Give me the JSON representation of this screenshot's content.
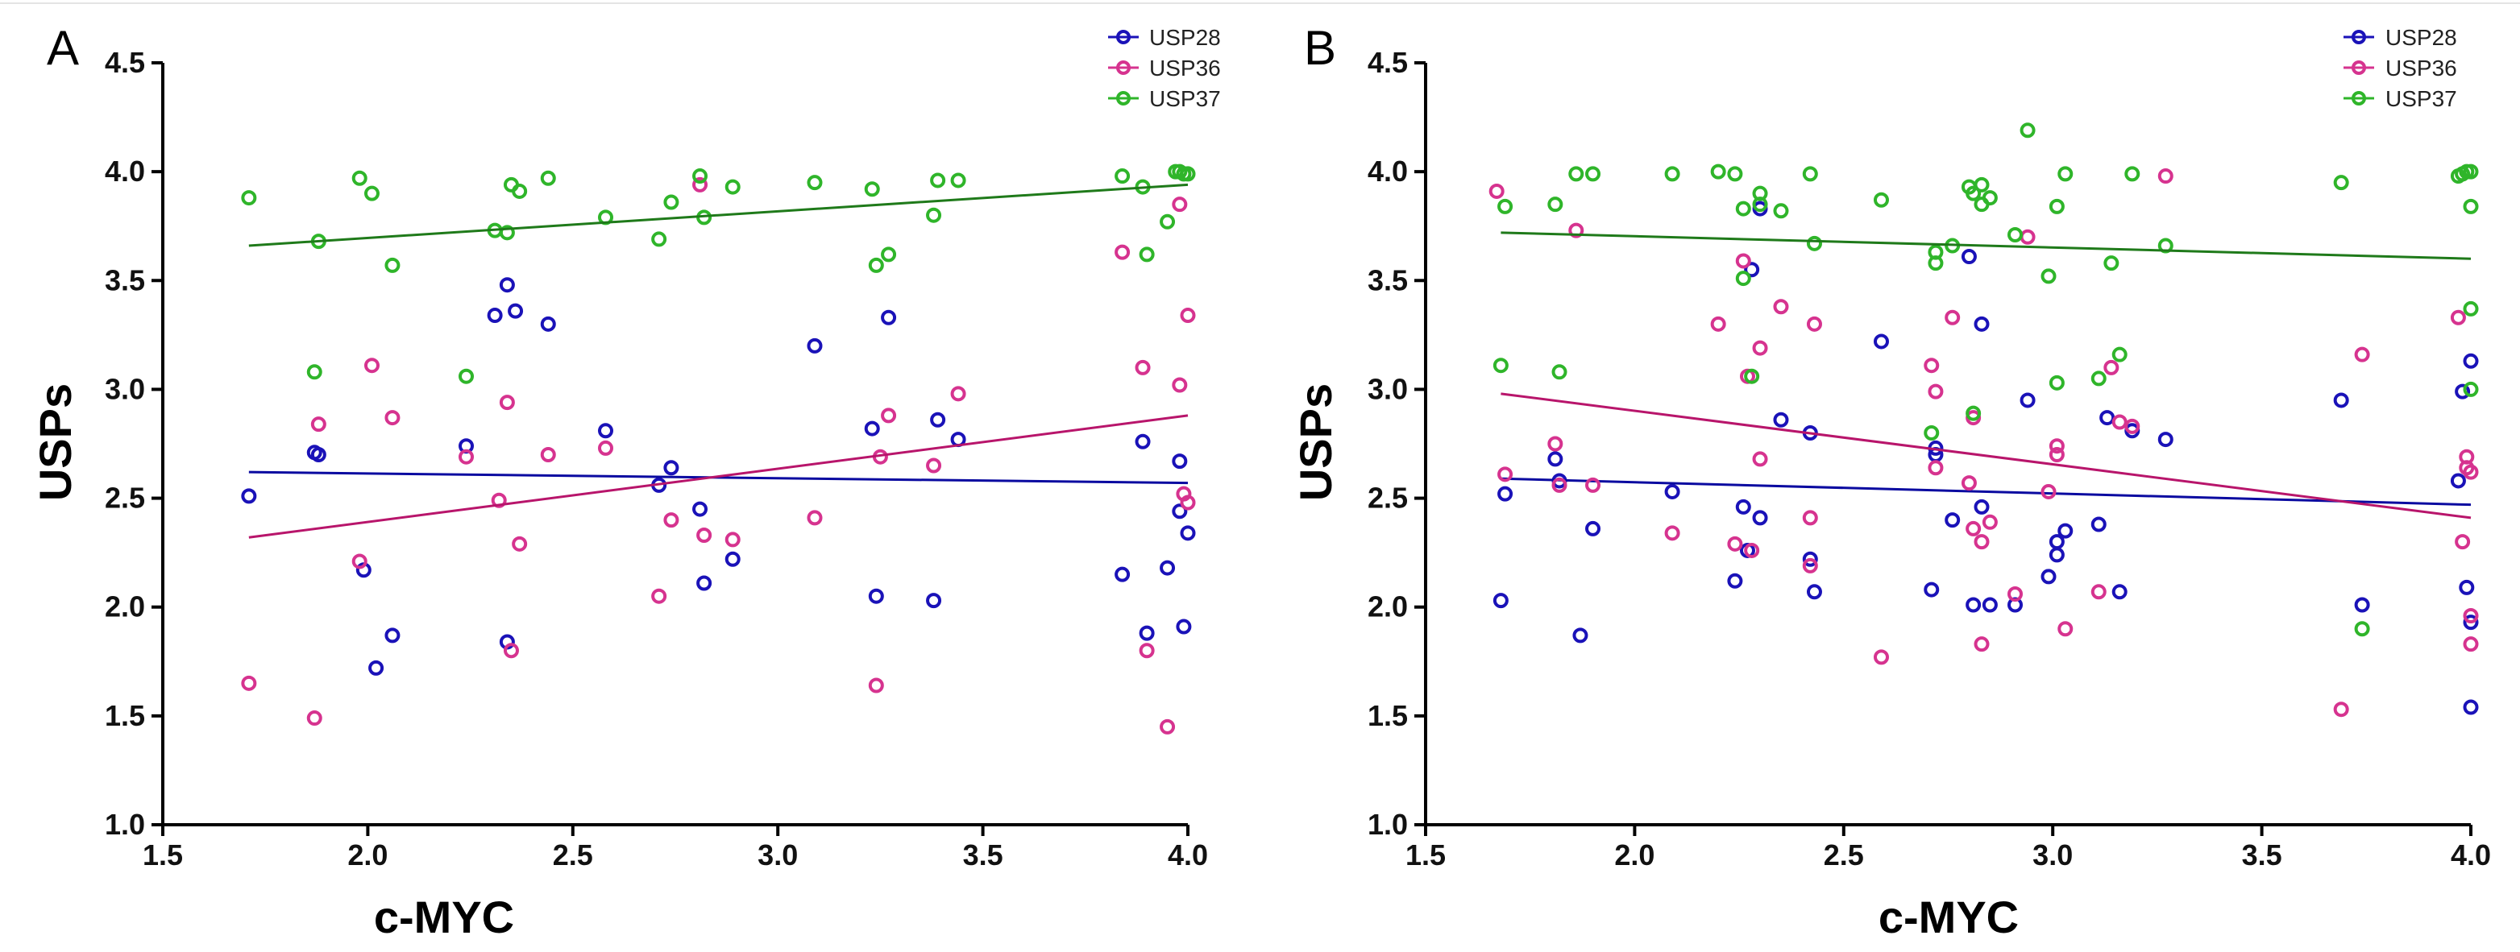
{
  "colors": {
    "USP28": "#1a12b8",
    "USP36": "#d6338f",
    "USP37": "#2fb52a",
    "USP28_line": "#0a0aa0",
    "USP36_line": "#b8156b",
    "USP37_line": "#1f7a1a"
  },
  "chart_data": [
    {
      "panel": "A",
      "type": "scatter",
      "xlabel": "c-MYC",
      "ylabel": "USPs",
      "xlim": [
        1.5,
        4.0
      ],
      "ylim": [
        1.0,
        4.5
      ],
      "xticks": [
        "1.5",
        "2.0",
        "2.5",
        "3.0",
        "3.5",
        "4.0"
      ],
      "yticks": [
        "1.0",
        "1.5",
        "2.0",
        "2.5",
        "3.0",
        "3.5",
        "4.0",
        "4.5"
      ],
      "legend_position": "top-right",
      "series": [
        {
          "name": "USP28",
          "trend": [
            [
              1.71,
              2.62
            ],
            [
              4.0,
              2.57
            ]
          ],
          "points": [
            [
              1.71,
              2.51
            ],
            [
              1.87,
              2.71
            ],
            [
              1.88,
              2.7
            ],
            [
              1.99,
              2.17
            ],
            [
              2.02,
              1.72
            ],
            [
              2.06,
              1.87
            ],
            [
              2.24,
              2.74
            ],
            [
              2.31,
              3.34
            ],
            [
              2.34,
              3.48
            ],
            [
              2.34,
              1.84
            ],
            [
              2.36,
              3.36
            ],
            [
              2.44,
              3.3
            ],
            [
              2.58,
              2.81
            ],
            [
              2.71,
              2.56
            ],
            [
              2.74,
              2.64
            ],
            [
              2.81,
              2.45
            ],
            [
              2.82,
              2.11
            ],
            [
              2.89,
              2.22
            ],
            [
              3.09,
              3.2
            ],
            [
              3.23,
              2.82
            ],
            [
              3.24,
              2.05
            ],
            [
              3.27,
              3.33
            ],
            [
              3.39,
              2.86
            ],
            [
              3.44,
              2.77
            ],
            [
              3.38,
              2.03
            ],
            [
              3.84,
              2.15
            ],
            [
              3.89,
              2.76
            ],
            [
              3.9,
              1.88
            ],
            [
              3.95,
              2.18
            ],
            [
              3.98,
              2.67
            ],
            [
              3.98,
              2.44
            ],
            [
              3.99,
              1.91
            ],
            [
              4.0,
              2.34
            ]
          ]
        },
        {
          "name": "USP36",
          "trend": [
            [
              1.71,
              2.32
            ],
            [
              4.0,
              2.88
            ]
          ],
          "points": [
            [
              1.71,
              1.65
            ],
            [
              1.87,
              1.49
            ],
            [
              1.88,
              2.84
            ],
            [
              1.98,
              2.21
            ],
            [
              2.01,
              3.11
            ],
            [
              2.06,
              2.87
            ],
            [
              2.24,
              2.69
            ],
            [
              2.32,
              2.49
            ],
            [
              2.34,
              2.94
            ],
            [
              2.35,
              1.8
            ],
            [
              2.37,
              2.29
            ],
            [
              2.44,
              2.7
            ],
            [
              2.58,
              2.73
            ],
            [
              2.71,
              2.05
            ],
            [
              2.74,
              2.4
            ],
            [
              2.81,
              3.94
            ],
            [
              2.82,
              2.33
            ],
            [
              2.89,
              2.31
            ],
            [
              3.09,
              2.41
            ],
            [
              3.24,
              1.64
            ],
            [
              3.25,
              2.69
            ],
            [
              3.27,
              2.88
            ],
            [
              3.38,
              2.65
            ],
            [
              3.44,
              2.98
            ],
            [
              3.84,
              3.63
            ],
            [
              3.89,
              3.1
            ],
            [
              3.9,
              1.8
            ],
            [
              3.95,
              1.45
            ],
            [
              3.98,
              3.02
            ],
            [
              3.98,
              3.85
            ],
            [
              3.99,
              2.52
            ],
            [
              4.0,
              3.34
            ],
            [
              4.0,
              2.48
            ]
          ]
        },
        {
          "name": "USP37",
          "trend": [
            [
              1.71,
              3.66
            ],
            [
              4.0,
              3.94
            ]
          ],
          "points": [
            [
              1.71,
              3.88
            ],
            [
              1.87,
              3.08
            ],
            [
              1.88,
              3.68
            ],
            [
              1.98,
              3.97
            ],
            [
              2.01,
              3.9
            ],
            [
              2.06,
              3.57
            ],
            [
              2.24,
              3.06
            ],
            [
              2.31,
              3.73
            ],
            [
              2.34,
              3.72
            ],
            [
              2.35,
              3.94
            ],
            [
              2.37,
              3.91
            ],
            [
              2.44,
              3.97
            ],
            [
              2.58,
              3.79
            ],
            [
              2.71,
              3.69
            ],
            [
              2.74,
              3.86
            ],
            [
              2.81,
              3.98
            ],
            [
              2.82,
              3.79
            ],
            [
              2.89,
              3.93
            ],
            [
              3.09,
              3.95
            ],
            [
              3.23,
              3.92
            ],
            [
              3.24,
              3.57
            ],
            [
              3.27,
              3.62
            ],
            [
              3.38,
              3.8
            ],
            [
              3.39,
              3.96
            ],
            [
              3.44,
              3.96
            ],
            [
              3.84,
              3.98
            ],
            [
              3.89,
              3.93
            ],
            [
              3.9,
              3.62
            ],
            [
              3.95,
              3.77
            ],
            [
              3.97,
              4.0
            ],
            [
              3.98,
              4.0
            ],
            [
              3.99,
              3.99
            ],
            [
              4.0,
              3.99
            ]
          ]
        }
      ]
    },
    {
      "panel": "B",
      "type": "scatter",
      "xlabel": "c-MYC",
      "ylabel": "USPs",
      "xlim": [
        1.5,
        4.0
      ],
      "ylim": [
        1.0,
        4.5
      ],
      "xticks": [
        "1.5",
        "2.0",
        "2.5",
        "3.0",
        "3.5",
        "4.0"
      ],
      "yticks": [
        "1.0",
        "1.5",
        "2.0",
        "2.5",
        "3.0",
        "3.5",
        "4.0",
        "4.5"
      ],
      "legend_position": "top-right",
      "series": [
        {
          "name": "USP28",
          "trend": [
            [
              1.68,
              2.59
            ],
            [
              4.0,
              2.47
            ]
          ],
          "points": [
            [
              1.68,
              2.03
            ],
            [
              1.69,
              2.52
            ],
            [
              1.81,
              2.68
            ],
            [
              1.82,
              2.58
            ],
            [
              1.87,
              1.87
            ],
            [
              1.9,
              2.36
            ],
            [
              2.09,
              2.53
            ],
            [
              2.24,
              2.12
            ],
            [
              2.26,
              2.46
            ],
            [
              2.27,
              2.26
            ],
            [
              2.28,
              3.55
            ],
            [
              2.3,
              2.41
            ],
            [
              2.3,
              3.83
            ],
            [
              2.35,
              2.86
            ],
            [
              2.42,
              2.8
            ],
            [
              2.42,
              2.22
            ],
            [
              2.43,
              2.07
            ],
            [
              2.59,
              3.22
            ],
            [
              2.71,
              2.08
            ],
            [
              2.72,
              2.73
            ],
            [
              2.72,
              2.7
            ],
            [
              2.76,
              2.4
            ],
            [
              2.8,
              3.61
            ],
            [
              2.81,
              2.01
            ],
            [
              2.83,
              3.3
            ],
            [
              2.83,
              2.46
            ],
            [
              2.85,
              2.01
            ],
            [
              2.91,
              2.01
            ],
            [
              2.94,
              2.95
            ],
            [
              2.99,
              2.14
            ],
            [
              3.01,
              2.3
            ],
            [
              3.01,
              2.24
            ],
            [
              3.03,
              2.35
            ],
            [
              3.11,
              2.38
            ],
            [
              3.13,
              2.87
            ],
            [
              3.16,
              2.07
            ],
            [
              3.19,
              2.81
            ],
            [
              3.27,
              2.77
            ],
            [
              3.69,
              2.95
            ],
            [
              3.74,
              2.01
            ],
            [
              3.97,
              2.58
            ],
            [
              3.98,
              2.99
            ],
            [
              3.99,
              2.09
            ],
            [
              4.0,
              1.93
            ],
            [
              4.0,
              1.54
            ],
            [
              4.0,
              3.13
            ]
          ]
        },
        {
          "name": "USP36",
          "trend": [
            [
              1.68,
              2.98
            ],
            [
              4.0,
              2.41
            ]
          ],
          "points": [
            [
              1.67,
              3.91
            ],
            [
              1.69,
              2.61
            ],
            [
              1.81,
              2.75
            ],
            [
              1.82,
              2.56
            ],
            [
              1.86,
              3.73
            ],
            [
              1.9,
              2.56
            ],
            [
              2.09,
              2.34
            ],
            [
              2.2,
              3.3
            ],
            [
              2.24,
              2.29
            ],
            [
              2.26,
              3.59
            ],
            [
              2.27,
              3.06
            ],
            [
              2.28,
              2.26
            ],
            [
              2.3,
              3.19
            ],
            [
              2.3,
              2.68
            ],
            [
              2.35,
              3.38
            ],
            [
              2.42,
              2.41
            ],
            [
              2.42,
              2.19
            ],
            [
              2.43,
              3.3
            ],
            [
              2.59,
              1.77
            ],
            [
              2.71,
              3.11
            ],
            [
              2.72,
              2.99
            ],
            [
              2.72,
              2.64
            ],
            [
              2.76,
              3.33
            ],
            [
              2.8,
              2.57
            ],
            [
              2.81,
              2.36
            ],
            [
              2.81,
              2.87
            ],
            [
              2.83,
              1.83
            ],
            [
              2.83,
              2.3
            ],
            [
              2.85,
              2.39
            ],
            [
              2.91,
              2.06
            ],
            [
              2.94,
              3.7
            ],
            [
              2.99,
              2.53
            ],
            [
              3.01,
              2.74
            ],
            [
              3.01,
              2.7
            ],
            [
              3.03,
              1.9
            ],
            [
              3.11,
              2.07
            ],
            [
              3.14,
              3.1
            ],
            [
              3.16,
              2.85
            ],
            [
              3.19,
              2.83
            ],
            [
              3.27,
              3.98
            ],
            [
              3.69,
              1.53
            ],
            [
              3.74,
              3.16
            ],
            [
              3.97,
              3.33
            ],
            [
              3.98,
              2.3
            ],
            [
              3.99,
              2.69
            ],
            [
              3.99,
              2.64
            ],
            [
              4.0,
              1.96
            ],
            [
              4.0,
              1.83
            ],
            [
              4.0,
              2.62
            ]
          ]
        },
        {
          "name": "USP37",
          "trend": [
            [
              1.68,
              3.72
            ],
            [
              4.0,
              3.6
            ]
          ],
          "points": [
            [
              1.68,
              3.11
            ],
            [
              1.69,
              3.84
            ],
            [
              1.81,
              3.85
            ],
            [
              1.82,
              3.08
            ],
            [
              1.86,
              3.99
            ],
            [
              1.9,
              3.99
            ],
            [
              2.09,
              3.99
            ],
            [
              2.2,
              4.0
            ],
            [
              2.24,
              3.99
            ],
            [
              2.26,
              3.51
            ],
            [
              2.26,
              3.83
            ],
            [
              2.28,
              3.06
            ],
            [
              2.3,
              3.85
            ],
            [
              2.3,
              3.9
            ],
            [
              2.35,
              3.82
            ],
            [
              2.42,
              3.99
            ],
            [
              2.43,
              3.67
            ],
            [
              2.59,
              3.87
            ],
            [
              2.71,
              2.8
            ],
            [
              2.72,
              3.58
            ],
            [
              2.72,
              3.63
            ],
            [
              2.76,
              3.66
            ],
            [
              2.8,
              3.93
            ],
            [
              2.81,
              2.89
            ],
            [
              2.81,
              3.9
            ],
            [
              2.83,
              3.94
            ],
            [
              2.83,
              3.85
            ],
            [
              2.85,
              3.88
            ],
            [
              2.91,
              3.71
            ],
            [
              2.94,
              4.19
            ],
            [
              2.99,
              3.52
            ],
            [
              3.01,
              3.03
            ],
            [
              3.01,
              3.84
            ],
            [
              3.03,
              3.99
            ],
            [
              3.11,
              3.05
            ],
            [
              3.14,
              3.58
            ],
            [
              3.16,
              3.16
            ],
            [
              3.19,
              3.99
            ],
            [
              3.27,
              3.66
            ],
            [
              3.69,
              3.95
            ],
            [
              3.74,
              1.9
            ],
            [
              3.97,
              3.98
            ],
            [
              3.98,
              3.99
            ],
            [
              3.99,
              4.0
            ],
            [
              4.0,
              3.0
            ],
            [
              4.0,
              3.84
            ],
            [
              4.0,
              3.37
            ],
            [
              4.0,
              4.0
            ]
          ]
        }
      ]
    }
  ]
}
